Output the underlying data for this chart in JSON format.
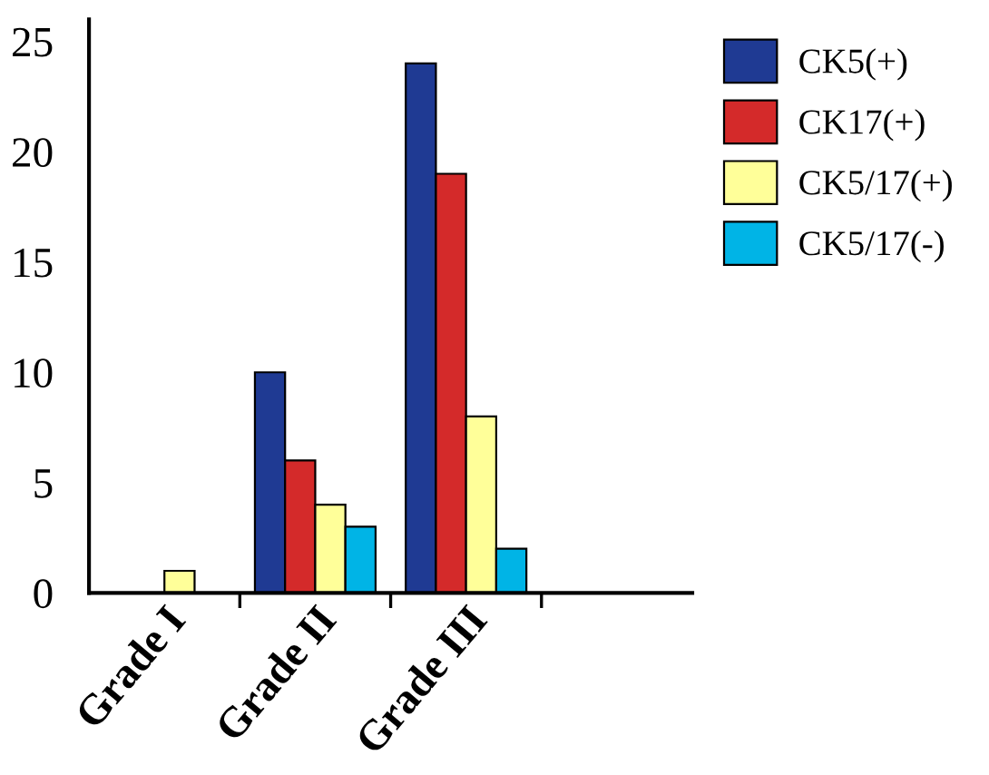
{
  "chart_data": {
    "type": "bar",
    "categories": [
      "Grade I",
      "Grade II",
      "Grade III",
      null
    ],
    "series": [
      {
        "name": "CK5(+)",
        "color": "#1f3a93",
        "values": [
          null,
          10,
          24,
          null
        ]
      },
      {
        "name": "CK17(+)",
        "color": "#d42a2a",
        "values": [
          null,
          6,
          19,
          null
        ]
      },
      {
        "name": "CK5/17(+)",
        "color": "#ffff99",
        "values": [
          1,
          4,
          8,
          null
        ]
      },
      {
        "name": "CK5/17(-)",
        "color": "#00b4e6",
        "values": [
          null,
          3,
          2,
          null
        ]
      }
    ],
    "ylim": [
      0,
      26
    ],
    "yticks": [
      0,
      5,
      10,
      15,
      20,
      25
    ],
    "grid": false,
    "legend": "top right"
  }
}
